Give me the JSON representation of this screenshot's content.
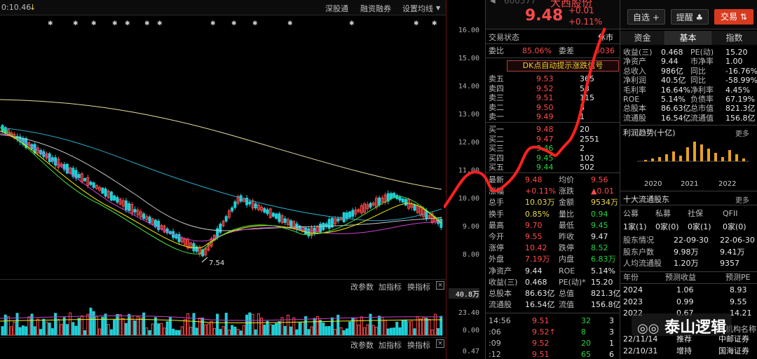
{
  "toolbar": {
    "time": "0:10.46",
    "arrow": "↓",
    "links": [
      "深股通",
      "融资融券",
      "设置均线"
    ]
  },
  "price_axis": [
    "16.00",
    "15.00",
    "14.00",
    "13.00",
    "12.00",
    "11.00",
    "10.00",
    "9.00",
    "8.00"
  ],
  "low_marker": "7.54",
  "volume_panel": {
    "buttons": [
      "改参数",
      "加指标",
      "换指标"
    ],
    "close": "×",
    "scale": [
      "40.8万",
      "23.40",
      "0.00"
    ]
  },
  "indicator_panel": {
    "buttons": [
      "改参数",
      "加指标",
      "换指标"
    ],
    "close": "×",
    "scale": [
      "0.47"
    ]
  },
  "header": {
    "code": "600577",
    "name": "大西股份",
    "price": "9.48",
    "change": "+0.01",
    "change_pct": "+0.11%",
    "buttons": {
      "watchlist": "自选",
      "plus": "+",
      "remind": "提醒",
      "trade": "交易"
    }
  },
  "status": {
    "label": "交易状态",
    "value": "休市",
    "weibi_label": "委比",
    "weibi_value": "85.06%",
    "weicha_label": "委差",
    "weicha_value": "6036"
  },
  "signal_banner": "DK点自动提示涨跌信号",
  "order_book": {
    "asks": [
      {
        "label": "卖五",
        "price": "9.53",
        "vol": "365"
      },
      {
        "label": "卖四",
        "price": "9.52",
        "vol": "53"
      },
      {
        "label": "卖三",
        "price": "9.51",
        "vol": "115"
      },
      {
        "label": "卖二",
        "price": "9.50",
        "vol": "3"
      },
      {
        "label": "卖一",
        "price": "9.49",
        "vol": "1"
      }
    ],
    "bids": [
      {
        "label": "买一",
        "price": "9.48",
        "vol": "20"
      },
      {
        "label": "买二",
        "price": "9.47",
        "vol": "2551"
      },
      {
        "label": "买三",
        "price": "9.46",
        "vol": "2"
      },
      {
        "label": "买四",
        "price": "9.45",
        "vol": "102"
      },
      {
        "label": "买五",
        "price": "9.44",
        "vol": "502"
      }
    ]
  },
  "stats": [
    {
      "l1": "最新",
      "v1": "9.48",
      "c1": "red",
      "l2": "均价",
      "v2": "9.56",
      "c2": "red"
    },
    {
      "l1": "涨幅",
      "v1": "+0.11%",
      "c1": "red",
      "l2": "涨跌",
      "v2": "▲0.01",
      "c2": "red"
    },
    {
      "l1": "总手",
      "v1": "10.03万",
      "c1": "yellow",
      "l2": "金额",
      "v2": "9534万",
      "c2": "yellow"
    },
    {
      "l1": "换手",
      "v1": "0.85%",
      "c1": "yellow",
      "l2": "量比",
      "v2": "0.94",
      "c2": "green"
    },
    {
      "l1": "最高",
      "v1": "9.70",
      "c1": "red",
      "l2": "最低",
      "v2": "9.45",
      "c2": "green"
    },
    {
      "l1": "今开",
      "v1": "9.55",
      "c1": "red",
      "l2": "昨收",
      "v2": "9.47",
      "c2": "white"
    },
    {
      "l1": "涨停",
      "v1": "10.42",
      "c1": "red",
      "l2": "跌停",
      "v2": "8.52",
      "c2": "green"
    },
    {
      "l1": "外盘",
      "v1": "7.19万",
      "c1": "red",
      "l2": "内盘",
      "v2": "6.83万",
      "c2": "green"
    },
    {
      "l1": "净资产",
      "v1": "9.44",
      "c1": "white",
      "l2": "ROE",
      "v2": "5.14%",
      "c2": "white"
    },
    {
      "l1": "收益(三)",
      "v1": "0.468",
      "c1": "white",
      "l2": "PE(动)*",
      "v2": "15.20",
      "c2": "white"
    },
    {
      "l1": "总股本",
      "v1": "86.63亿",
      "c1": "white",
      "l2": "总值",
      "v2": "821.3亿",
      "c2": "white"
    },
    {
      "l1": "流通股",
      "v1": "16.54亿",
      "c1": "white",
      "l2": "流值",
      "v2": "156.8亿",
      "c2": "white"
    }
  ],
  "ticks": [
    {
      "time": "14:56",
      "price": "9.51",
      "vol": "32",
      "n": "3"
    },
    {
      "time": ":06",
      "price": "9.52↑",
      "vol": "8",
      "n": "3"
    },
    {
      "time": ":09",
      "price": "9.52",
      "vol": "20",
      "n": "1"
    },
    {
      "time": ":12",
      "price": "9.51",
      "vol": "65",
      "n": "6"
    }
  ],
  "tabs": [
    "资金",
    "基本",
    "指数"
  ],
  "fundamentals": [
    {
      "l1": "收益(三)",
      "v1": "0.468",
      "l2": "PE(动)",
      "v2": "15.20"
    },
    {
      "l1": "净资产",
      "v1": "9.44",
      "l2": "市净率",
      "v2": "1.00"
    },
    {
      "l1": "总收入",
      "v1": "986亿",
      "l2": "同比",
      "v2": "-16.76%"
    },
    {
      "l1": "净利润",
      "v1": "40.5亿",
      "l2": "同比",
      "v2": "-58.99%"
    },
    {
      "l1": "毛利率",
      "v1": "16.64%",
      "l2": "净利率",
      "v2": "4.45%"
    },
    {
      "l1": "ROE",
      "v1": "5.14%",
      "l2": "负债率",
      "v2": "67.19%"
    },
    {
      "l1": "总股本",
      "v1": "86.63亿",
      "l2": "总市值",
      "v2": "821.3亿"
    },
    {
      "l1": "流通股",
      "v1": "16.54亿",
      "l2": "流通值",
      "v2": "156.8亿"
    }
  ],
  "profit_trend": {
    "title": "利润趋势(十亿)",
    "more": "更多",
    "years": [
      "2020",
      "2021",
      "2022"
    ]
  },
  "top_holders": {
    "title": "十大流通股东",
    "more": "更多",
    "headers": [
      "公募",
      "私募",
      "社保",
      "QFII"
    ],
    "values": [
      "1家(1)",
      "0家(0)",
      "0家(1)",
      "0家(0)"
    ],
    "rows": [
      {
        "label": "股东情况",
        "a": "22-09-30",
        "b": "22-06-30"
      },
      {
        "label": "股东户数",
        "a": "9.98万",
        "b": "9.41万"
      },
      {
        "label": "人均流通股",
        "a": "1.20万",
        "b": "9357"
      }
    ]
  },
  "forecast": {
    "headers": [
      "年份",
      "预测收益",
      "预测PE"
    ],
    "rows": [
      {
        "year": "2024",
        "eps": "1.06",
        "pe": "8.93"
      },
      {
        "year": "2023",
        "eps": "0.99",
        "pe": "9.55"
      },
      {
        "year": "2022",
        "eps": "0.67",
        "pe": "14.21"
      }
    ],
    "ratings": [
      {
        "date": "22/11/14",
        "rating": "推荐",
        "org": "中邮证券"
      },
      {
        "date": "22/10/31",
        "rating": "增持",
        "org": "国海证券"
      }
    ],
    "org_header": "机构名称"
  },
  "watermark": "泰山逻辑",
  "colors": {
    "up": "#ff4a4a",
    "down": "#27d23d",
    "ma_yellow": "#f0f000",
    "annotation_red": "#ff2020",
    "volume_cyan": "#20d0d8"
  }
}
